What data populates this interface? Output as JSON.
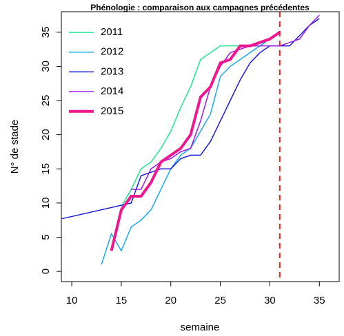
{
  "chart_data": {
    "type": "line",
    "title": "Phénologie : comparaison aux campagnes précédentes",
    "x_label": "semaine",
    "y_label": "N° de stade",
    "xlim": [
      8.95,
      37.0
    ],
    "ylim": [
      -1.5,
      38
    ],
    "xticks": [
      10,
      15,
      20,
      25,
      30,
      35
    ],
    "yticks": [
      0,
      5,
      10,
      15,
      20,
      25,
      30,
      35
    ],
    "vline": 31,
    "vline_color": "#e8201f",
    "legend": "topleft",
    "series": [
      {
        "name": "2011",
        "color": "#1ee88f",
        "width": 1.5,
        "x": [
          15,
          16,
          17,
          18,
          19,
          20,
          21,
          22,
          23,
          24,
          25,
          26,
          27,
          28,
          29,
          30,
          31
        ],
        "values": [
          9.5,
          12,
          15,
          16,
          18,
          20.5,
          24,
          27,
          31,
          32,
          33,
          33,
          33,
          33,
          33,
          34,
          35
        ]
      },
      {
        "name": "2012",
        "color": "#18a9f0",
        "width": 1.5,
        "x": [
          13,
          14,
          15,
          16,
          17,
          18,
          19,
          20,
          21,
          22,
          23,
          24,
          25,
          26,
          27,
          28,
          29,
          30,
          31
        ],
        "values": [
          1,
          5.5,
          3,
          6.5,
          7.5,
          9,
          12,
          15,
          17,
          18,
          20.5,
          23,
          28.5,
          30,
          31,
          32,
          33,
          34,
          35
        ]
      },
      {
        "name": "2013",
        "color": "#1a1adc",
        "width": 1.5,
        "x": [
          9,
          16,
          17,
          18,
          19,
          20,
          21,
          22,
          23,
          24,
          25,
          26,
          27,
          28,
          29,
          30,
          31,
          32,
          33,
          34,
          35
        ],
        "values": [
          7.7,
          10,
          14,
          14.5,
          15,
          15,
          16.5,
          17,
          17,
          19,
          22,
          25,
          28,
          30.5,
          32,
          33,
          33,
          33,
          34.5,
          36,
          37
        ]
      },
      {
        "name": "2014",
        "color": "#9a1ae8",
        "width": 1.5,
        "x": [
          16,
          17,
          18,
          19,
          20,
          21,
          22,
          23,
          24,
          25,
          26,
          27,
          28,
          29,
          30,
          31,
          32,
          33,
          34,
          35
        ],
        "values": [
          12,
          12,
          15,
          16,
          16.5,
          17.5,
          18,
          22,
          27,
          30,
          32,
          32.5,
          33,
          33,
          33,
          33,
          33.5,
          34,
          36,
          37.5
        ]
      },
      {
        "name": "2015",
        "color": "#f0168f",
        "width": 4,
        "x": [
          14,
          15,
          16,
          17,
          18,
          19,
          20,
          21,
          22,
          23,
          24,
          25,
          26,
          27,
          28,
          29,
          30,
          31
        ],
        "values": [
          3,
          9,
          11,
          11,
          13,
          16,
          17,
          18,
          20,
          25.5,
          27,
          30.5,
          31,
          33,
          33,
          33.5,
          34,
          35
        ]
      }
    ]
  }
}
